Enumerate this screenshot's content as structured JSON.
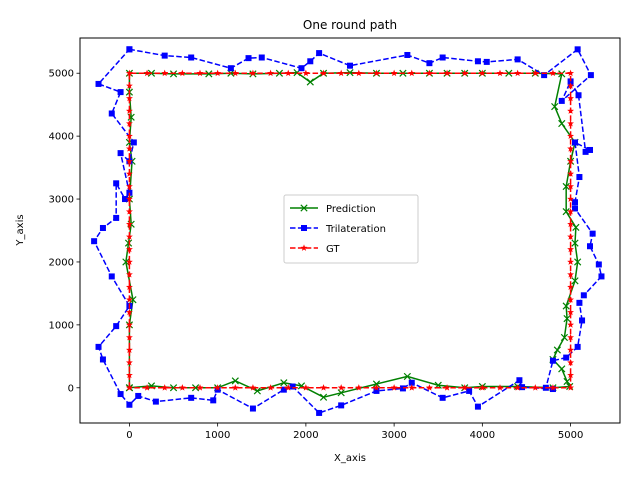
{
  "chart_data": {
    "type": "line",
    "title": "One round path",
    "xlabel": "X_axis",
    "ylabel": "Y_axis",
    "xlim": [
      -560,
      5560
    ],
    "ylim": [
      -560,
      5560
    ],
    "xticks": [
      0,
      1000,
      2000,
      3000,
      4000,
      5000
    ],
    "yticks": [
      0,
      1000,
      2000,
      3000,
      4000,
      5000
    ],
    "grid": false,
    "legend_position": "center",
    "series": [
      {
        "name": "Prediction",
        "color": "#008000",
        "style": "solid",
        "marker": "x",
        "points": [
          [
            0,
            0
          ],
          [
            0,
            1000
          ],
          [
            40,
            1400
          ],
          [
            -40,
            2000
          ],
          [
            -10,
            2300
          ],
          [
            20,
            2600
          ],
          [
            0,
            3000
          ],
          [
            30,
            3600
          ],
          [
            0,
            3900
          ],
          [
            20,
            4300
          ],
          [
            0,
            4700
          ],
          [
            0,
            5000
          ],
          [
            250,
            5000
          ],
          [
            500,
            4990
          ],
          [
            900,
            4990
          ],
          [
            1150,
            5000
          ],
          [
            1400,
            4990
          ],
          [
            1700,
            5000
          ],
          [
            1900,
            5010
          ],
          [
            2050,
            4860
          ],
          [
            2200,
            5000
          ],
          [
            2500,
            5010
          ],
          [
            2800,
            5000
          ],
          [
            3100,
            5000
          ],
          [
            3400,
            5000
          ],
          [
            3600,
            5000
          ],
          [
            3800,
            5000
          ],
          [
            4000,
            5000
          ],
          [
            4300,
            5000
          ],
          [
            4600,
            5000
          ],
          [
            4900,
            4990
          ],
          [
            4820,
            4470
          ],
          [
            4900,
            4200
          ],
          [
            5050,
            3900
          ],
          [
            5000,
            3600
          ],
          [
            4950,
            3200
          ],
          [
            4950,
            2800
          ],
          [
            5060,
            2550
          ],
          [
            5050,
            2300
          ],
          [
            5080,
            2000
          ],
          [
            5050,
            1700
          ],
          [
            4950,
            1300
          ],
          [
            4960,
            1100
          ],
          [
            4930,
            800
          ],
          [
            4850,
            600
          ],
          [
            4800,
            450
          ],
          [
            4900,
            300
          ],
          [
            4960,
            100
          ],
          [
            4990,
            20
          ],
          [
            4800,
            0
          ],
          [
            4400,
            20
          ],
          [
            4000,
            20
          ],
          [
            3800,
            0
          ],
          [
            3500,
            40
          ],
          [
            3150,
            180
          ],
          [
            2800,
            60
          ],
          [
            2400,
            -80
          ],
          [
            2200,
            -150
          ],
          [
            1950,
            30
          ],
          [
            1750,
            80
          ],
          [
            1450,
            -50
          ],
          [
            1200,
            110
          ],
          [
            1000,
            0
          ],
          [
            750,
            0
          ],
          [
            500,
            0
          ],
          [
            250,
            30
          ],
          [
            0,
            0
          ]
        ]
      },
      {
        "name": "Trilateration",
        "color": "#0000ff",
        "style": "dashed",
        "marker": "s",
        "points": [
          [
            0,
            5380
          ],
          [
            400,
            5280
          ],
          [
            700,
            5250
          ],
          [
            1150,
            5080
          ],
          [
            1350,
            5240
          ],
          [
            1500,
            5250
          ],
          [
            1950,
            5080
          ],
          [
            2050,
            5190
          ],
          [
            2150,
            5320
          ],
          [
            2500,
            5120
          ],
          [
            3150,
            5290
          ],
          [
            3400,
            5160
          ],
          [
            3550,
            5250
          ],
          [
            3950,
            5190
          ],
          [
            4050,
            5180
          ],
          [
            4400,
            5220
          ],
          [
            4700,
            4970
          ],
          [
            5080,
            5380
          ],
          [
            5230,
            4970
          ],
          [
            4900,
            4560
          ],
          [
            5000,
            4870
          ],
          [
            5090,
            4650
          ],
          [
            5170,
            3750
          ],
          [
            5220,
            3780
          ],
          [
            5050,
            3900
          ],
          [
            5100,
            3350
          ],
          [
            5050,
            2950
          ],
          [
            5050,
            2850
          ],
          [
            5250,
            2450
          ],
          [
            5220,
            2250
          ],
          [
            5320,
            1960
          ],
          [
            5350,
            1770
          ],
          [
            5150,
            1470
          ],
          [
            5100,
            1350
          ],
          [
            5130,
            1070
          ],
          [
            5080,
            650
          ],
          [
            4950,
            480
          ],
          [
            4800,
            430
          ],
          [
            4720,
            0
          ],
          [
            4800,
            -20
          ],
          [
            4450,
            10
          ],
          [
            4420,
            120
          ],
          [
            3950,
            -300
          ],
          [
            3850,
            -50
          ],
          [
            3550,
            -160
          ],
          [
            3200,
            80
          ],
          [
            3100,
            -10
          ],
          [
            2800,
            -50
          ],
          [
            2400,
            -280
          ],
          [
            2150,
            -400
          ],
          [
            1850,
            20
          ],
          [
            1750,
            -30
          ],
          [
            1400,
            -330
          ],
          [
            1000,
            -30
          ],
          [
            950,
            -200
          ],
          [
            700,
            -160
          ],
          [
            300,
            -220
          ],
          [
            100,
            -130
          ],
          [
            0,
            -270
          ],
          [
            -100,
            -100
          ],
          [
            -300,
            450
          ],
          [
            -350,
            650
          ],
          [
            -150,
            980
          ],
          [
            0,
            1300
          ],
          [
            -200,
            1770
          ],
          [
            -400,
            2330
          ],
          [
            -300,
            2540
          ],
          [
            -150,
            2700
          ],
          [
            -150,
            3250
          ],
          [
            -50,
            3000
          ],
          [
            0,
            3100
          ],
          [
            -100,
            3730
          ],
          [
            0,
            3600
          ],
          [
            50,
            3900
          ],
          [
            -200,
            4360
          ],
          [
            -100,
            4700
          ],
          [
            -350,
            4830
          ],
          [
            0,
            5380
          ]
        ]
      },
      {
        "name": "GT",
        "color": "#ff0000",
        "style": "dashed",
        "marker": "*",
        "points": [
          [
            0,
            0
          ],
          [
            0,
            200
          ],
          [
            0,
            400
          ],
          [
            0,
            600
          ],
          [
            0,
            800
          ],
          [
            0,
            1000
          ],
          [
            0,
            1200
          ],
          [
            0,
            1400
          ],
          [
            0,
            1600
          ],
          [
            0,
            1800
          ],
          [
            0,
            2000
          ],
          [
            0,
            2200
          ],
          [
            0,
            2400
          ],
          [
            0,
            2600
          ],
          [
            0,
            2800
          ],
          [
            0,
            3000
          ],
          [
            0,
            3200
          ],
          [
            0,
            3400
          ],
          [
            0,
            3600
          ],
          [
            0,
            3800
          ],
          [
            0,
            4000
          ],
          [
            0,
            4200
          ],
          [
            0,
            4400
          ],
          [
            0,
            4600
          ],
          [
            0,
            4800
          ],
          [
            0,
            5000
          ],
          [
            200,
            5000
          ],
          [
            400,
            5000
          ],
          [
            600,
            5000
          ],
          [
            800,
            5000
          ],
          [
            1000,
            5000
          ],
          [
            1200,
            5000
          ],
          [
            1400,
            5000
          ],
          [
            1600,
            5000
          ],
          [
            1800,
            5000
          ],
          [
            2000,
            5000
          ],
          [
            2200,
            5000
          ],
          [
            2400,
            5000
          ],
          [
            2600,
            5000
          ],
          [
            2800,
            5000
          ],
          [
            3000,
            5000
          ],
          [
            3200,
            5000
          ],
          [
            3400,
            5000
          ],
          [
            3600,
            5000
          ],
          [
            3800,
            5000
          ],
          [
            4000,
            5000
          ],
          [
            4200,
            5000
          ],
          [
            4400,
            5000
          ],
          [
            4600,
            5000
          ],
          [
            4800,
            5000
          ],
          [
            5000,
            5000
          ],
          [
            5000,
            4800
          ],
          [
            5000,
            4600
          ],
          [
            5000,
            4400
          ],
          [
            5000,
            4200
          ],
          [
            5000,
            4000
          ],
          [
            5000,
            3800
          ],
          [
            5000,
            3600
          ],
          [
            5000,
            3400
          ],
          [
            5000,
            3200
          ],
          [
            5000,
            3000
          ],
          [
            5000,
            2800
          ],
          [
            5000,
            2600
          ],
          [
            5000,
            2400
          ],
          [
            5000,
            2200
          ],
          [
            5000,
            2000
          ],
          [
            5000,
            1800
          ],
          [
            5000,
            1600
          ],
          [
            5000,
            1400
          ],
          [
            5000,
            1200
          ],
          [
            5000,
            1000
          ],
          [
            5000,
            800
          ],
          [
            5000,
            600
          ],
          [
            5000,
            400
          ],
          [
            5000,
            200
          ],
          [
            5000,
            0
          ],
          [
            4800,
            0
          ],
          [
            4600,
            0
          ],
          [
            4400,
            0
          ],
          [
            4200,
            0
          ],
          [
            4000,
            0
          ],
          [
            3800,
            0
          ],
          [
            3600,
            0
          ],
          [
            3400,
            0
          ],
          [
            3200,
            0
          ],
          [
            3000,
            0
          ],
          [
            2800,
            0
          ],
          [
            2600,
            0
          ],
          [
            2400,
            0
          ],
          [
            2200,
            0
          ],
          [
            2000,
            0
          ],
          [
            1800,
            0
          ],
          [
            1600,
            0
          ],
          [
            1400,
            0
          ],
          [
            1200,
            0
          ],
          [
            1000,
            0
          ],
          [
            800,
            0
          ],
          [
            600,
            0
          ],
          [
            400,
            0
          ],
          [
            200,
            0
          ],
          [
            0,
            0
          ]
        ]
      }
    ]
  }
}
